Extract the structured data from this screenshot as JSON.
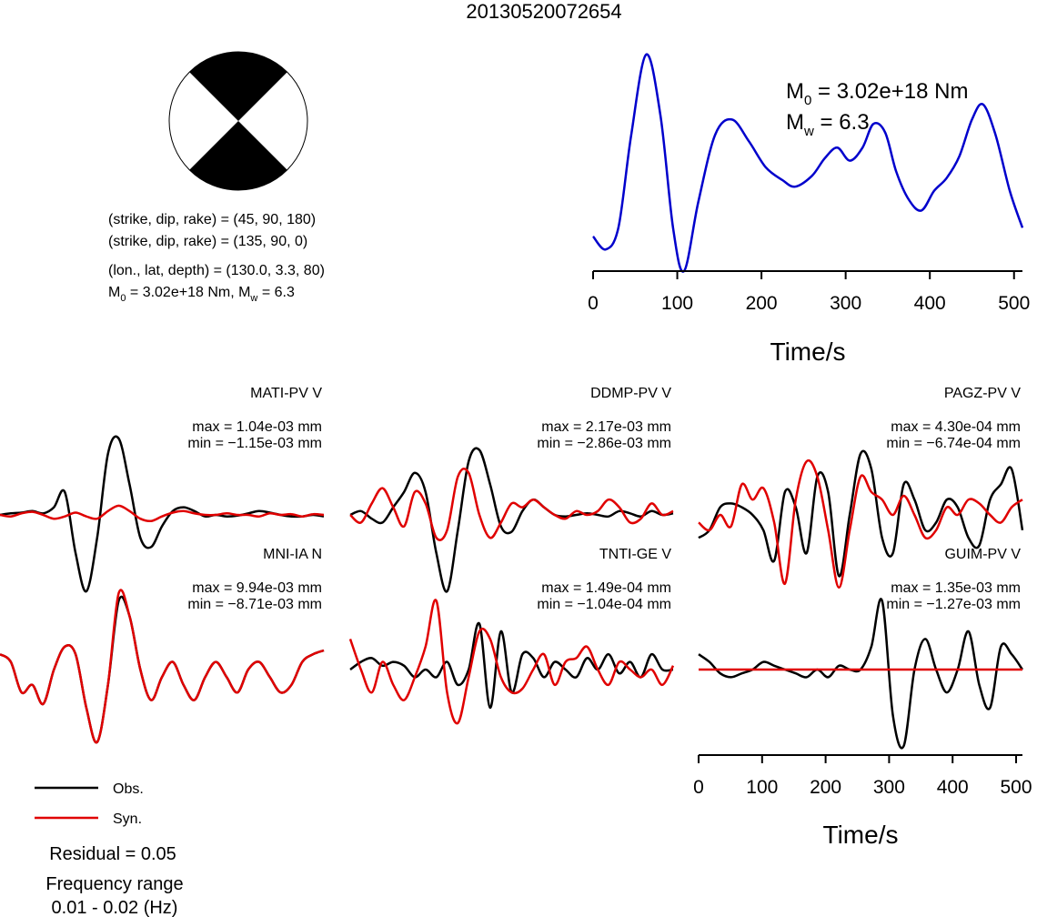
{
  "event_title": "20130520072654",
  "focal": {
    "plane1": "(strike, dip, rake) = (45, 90, 180)",
    "plane2": "(strike, dip, rake) = (135, 90, 0)",
    "location": "(lon., lat, depth) = (130.0, 3.3, 80)",
    "moment_line": {
      "m0_text": " = 3.02e+18 Nm, ",
      "mw_text": " = 6.3"
    },
    "strike": 45,
    "dip": 90,
    "rake": 180
  },
  "moment_box": {
    "m0_value": " = 3.02e+18 Nm",
    "mw_value": " = 6.3",
    "m_symbol": "M",
    "sub0": "0",
    "subw": "w"
  },
  "legend": {
    "obs": "Obs.",
    "syn": "Syn.",
    "obs_color": "#000000",
    "syn_color": "#e00000"
  },
  "residual": "Residual = 0.05",
  "frequency": {
    "label": "Frequency range",
    "value": "0.01 - 0.02 (Hz)"
  },
  "chart_data": [
    {
      "type": "line",
      "title": "",
      "xlabel": "Time/s",
      "xlim": [
        0,
        510
      ],
      "xticks": [
        "0",
        "100",
        "200",
        "300",
        "400",
        "500"
      ],
      "series": [
        {
          "color": "#0000cc",
          "x": [
            0,
            15,
            30,
            45,
            63,
            80,
            95,
            108,
            125,
            145,
            165,
            185,
            205,
            225,
            240,
            260,
            275,
            290,
            305,
            320,
            333,
            347,
            360,
            375,
            390,
            405,
            420,
            435,
            450,
            463,
            478,
            495,
            510
          ],
          "y": [
            0.16,
            0.1,
            0.2,
            0.62,
            1.0,
            0.72,
            0.2,
            0.0,
            0.32,
            0.63,
            0.7,
            0.6,
            0.48,
            0.42,
            0.39,
            0.44,
            0.52,
            0.57,
            0.51,
            0.57,
            0.68,
            0.64,
            0.46,
            0.33,
            0.28,
            0.37,
            0.43,
            0.53,
            0.7,
            0.77,
            0.63,
            0.37,
            0.2
          ]
        }
      ]
    },
    {
      "type": "line",
      "title": "MATI-PV V",
      "max": "max = 1.04e-03 mm",
      "min": "min = −1.15e-03 mm",
      "obs": [
        0,
        0.02,
        0.03,
        0.05,
        0.02,
        0.1,
        0.3,
        -0.5,
        -1.0,
        -0.3,
        0.8,
        1.0,
        0.4,
        -0.3,
        -0.42,
        -0.15,
        0.05,
        0.1,
        0.05,
        -0.02,
        0.0,
        -0.02,
        -0.01,
        0.02,
        0.05,
        0.03,
        0.0,
        -0.02,
        -0.02,
        0.0,
        -0.02
      ],
      "syn": [
        0.0,
        -0.02,
        0.02,
        0.04,
        0.0,
        -0.05,
        -0.02,
        0.03,
        -0.02,
        -0.05,
        0.05,
        0.12,
        0.05,
        -0.05,
        -0.08,
        -0.02,
        0.03,
        0.05,
        0.02,
        0.0,
        0.0,
        0.02,
        0.0,
        0.0,
        -0.02,
        0.02,
        0.0,
        0.01,
        -0.02,
        0.01,
        0.0
      ]
    },
    {
      "type": "line",
      "title": "DDMP-PV V",
      "max": "max = 2.17e-03 mm",
      "min": "min = −2.86e-03 mm",
      "obs": [
        0,
        0.05,
        -0.05,
        -0.1,
        0.1,
        0.3,
        0.55,
        0.3,
        -0.5,
        -1.0,
        -0.2,
        0.7,
        0.85,
        0.4,
        -0.15,
        -0.22,
        0.05,
        0.2,
        0.1,
        0.0,
        -0.02,
        0.0,
        0.02,
        0.0,
        -0.02,
        0.05,
        0.02,
        -0.02,
        0.05,
        0.0,
        0.02
      ],
      "syn": [
        0.0,
        -0.1,
        0.15,
        0.35,
        0.1,
        -0.15,
        0.3,
        0.15,
        -0.3,
        -0.2,
        0.5,
        0.55,
        0.0,
        -0.3,
        -0.1,
        0.15,
        0.1,
        0.2,
        0.1,
        0.0,
        -0.05,
        0.05,
        0.0,
        0.05,
        0.2,
        0.1,
        -0.1,
        -0.05,
        0.15,
        0.0,
        0.05
      ]
    },
    {
      "type": "line",
      "title": "PAGZ-PV V",
      "max": "max = 4.30e-04 mm",
      "min": "min = −6.74e-04 mm",
      "obs": [
        -0.3,
        -0.2,
        0.1,
        0.15,
        0.1,
        0.0,
        -0.2,
        -0.6,
        0.3,
        0.1,
        -0.5,
        0.5,
        0.3,
        -0.8,
        0.0,
        0.8,
        0.6,
        -0.3,
        -0.5,
        0.4,
        0.2,
        -0.2,
        -0.1,
        0.2,
        0.1,
        -0.3,
        -0.4,
        0.2,
        0.4,
        0.6,
        -0.2
      ],
      "syn": [
        -0.1,
        -0.2,
        0.0,
        -0.15,
        0.4,
        0.2,
        0.35,
        -0.1,
        -0.9,
        0.2,
        0.7,
        0.5,
        -0.2,
        -0.95,
        -0.2,
        0.5,
        0.3,
        0.2,
        0.0,
        0.25,
        0.0,
        -0.3,
        -0.2,
        0.1,
        0.0,
        0.2,
        0.15,
        0.0,
        -0.1,
        0.1,
        0.2
      ]
    },
    {
      "type": "line",
      "title": "MNI-IA N",
      "max": "max = 9.94e-03 mm",
      "min": "min = −8.71e-03 mm",
      "obs": [
        0.2,
        0.1,
        -0.3,
        -0.2,
        -0.45,
        0.0,
        0.3,
        0.2,
        -0.5,
        -0.95,
        -0.2,
        0.9,
        0.7,
        0.0,
        -0.4,
        -0.1,
        0.1,
        -0.2,
        -0.4,
        -0.1,
        0.1,
        -0.1,
        -0.3,
        0.0,
        0.1,
        -0.1,
        -0.3,
        -0.2,
        0.1,
        0.2,
        0.25
      ],
      "syn": [
        0.2,
        0.1,
        -0.3,
        -0.2,
        -0.45,
        0.0,
        0.3,
        0.2,
        -0.5,
        -0.95,
        -0.2,
        1.0,
        0.7,
        0.0,
        -0.4,
        -0.1,
        0.1,
        -0.2,
        -0.4,
        -0.1,
        0.1,
        -0.1,
        -0.3,
        0.0,
        0.1,
        -0.1,
        -0.3,
        -0.2,
        0.1,
        0.2,
        0.25
      ]
    },
    {
      "type": "line",
      "title": "TNTI-GE V",
      "max": "max = 1.49e-04 mm",
      "min": "min = −1.04e-04 mm",
      "obs": [
        0.0,
        0.1,
        0.15,
        0.05,
        0.1,
        0.05,
        -0.1,
        0.0,
        -0.1,
        0.1,
        -0.2,
        0.0,
        0.6,
        -0.5,
        0.5,
        -0.3,
        0.2,
        0.15,
        -0.1,
        0.1,
        0.0,
        -0.1,
        0.15,
        0.0,
        0.2,
        -0.05,
        0.1,
        -0.1,
        0.2,
        0.0,
        0.0
      ],
      "syn": [
        0.4,
        0.0,
        -0.3,
        0.1,
        -0.2,
        -0.4,
        -0.1,
        0.3,
        0.9,
        -0.3,
        -0.7,
        -0.1,
        0.5,
        0.4,
        -0.1,
        -0.3,
        -0.25,
        0.0,
        0.2,
        -0.2,
        0.1,
        0.15,
        0.3,
        0.0,
        -0.2,
        0.1,
        0.0,
        -0.1,
        0.0,
        -0.2,
        0.05
      ]
    },
    {
      "type": "line",
      "title": "GUIM-PV V",
      "max": "max = 1.35e-03 mm",
      "min": "min = −1.27e-03 mm",
      "obs": [
        0.2,
        0.1,
        -0.05,
        -0.1,
        -0.05,
        0.0,
        0.1,
        0.05,
        0.0,
        -0.05,
        -0.1,
        0.0,
        -0.1,
        0.05,
        0.0,
        0.0,
        0.3,
        0.9,
        -0.6,
        -1.0,
        0.0,
        0.4,
        0.0,
        -0.3,
        0.0,
        0.5,
        -0.2,
        -0.5,
        0.3,
        0.2,
        0.0
      ],
      "syn": [
        0.0,
        0.0,
        0.0,
        0.0,
        0.0,
        0.0,
        0.0,
        0.0,
        0.0,
        0.0,
        0.0,
        0.0,
        0.0,
        0.0,
        0.0,
        0.0,
        0.0,
        0.0,
        0.0,
        0.0,
        0.0,
        0.0,
        0.0,
        0.0,
        0.0,
        0.0,
        0.0,
        0.0,
        0.0,
        0.0,
        0.0
      ]
    },
    {
      "type": "axis",
      "xlabel": "Time/s",
      "xlim": [
        0,
        510
      ],
      "xticks": [
        "0",
        "100",
        "200",
        "300",
        "400",
        "500"
      ]
    }
  ]
}
